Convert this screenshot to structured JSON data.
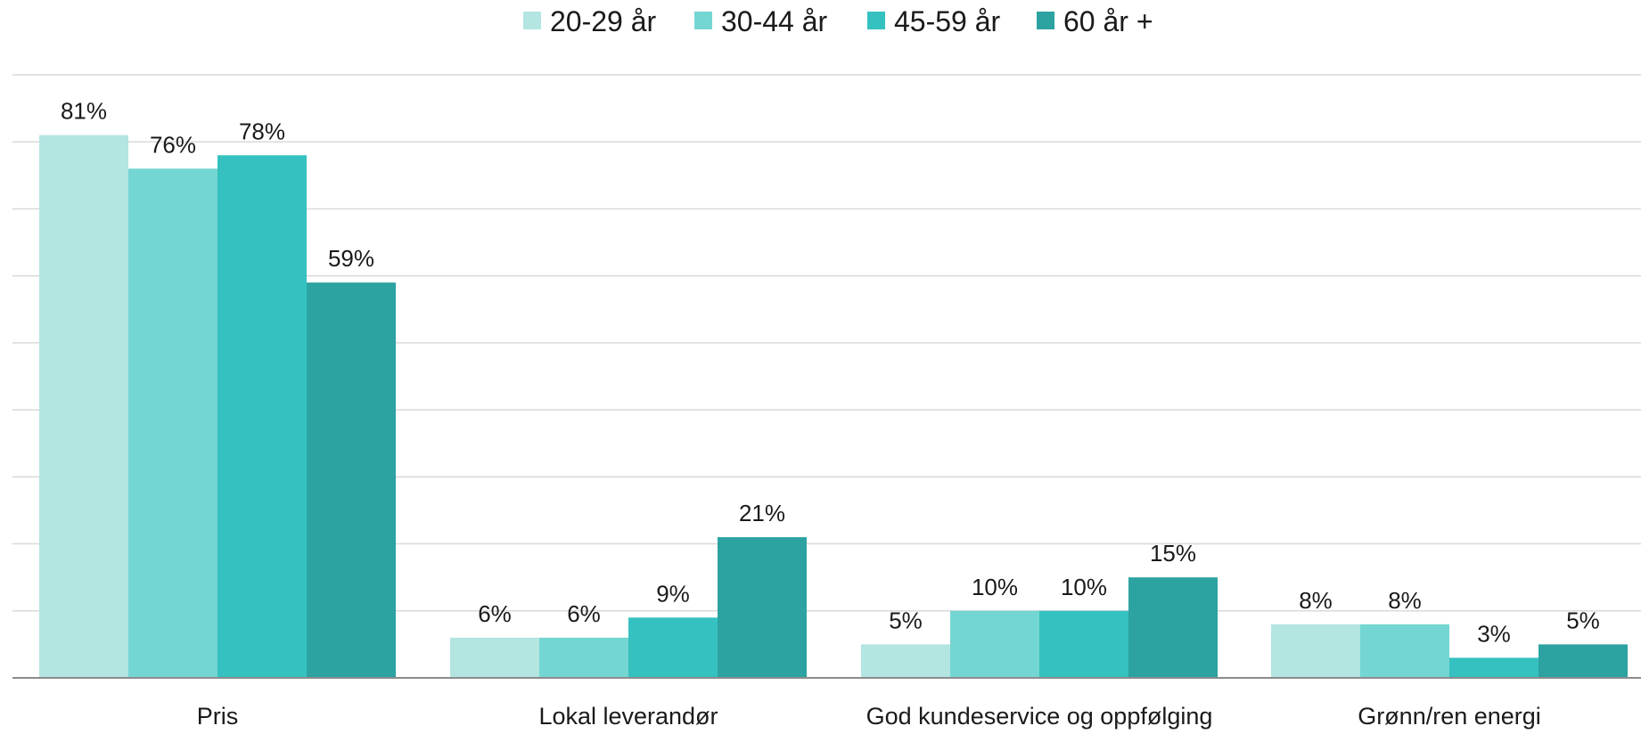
{
  "chart_data": {
    "type": "bar",
    "categories": [
      "Pris",
      "Lokal leverandør",
      "God kundeservice og oppfølging",
      "Grønn/ren energi"
    ],
    "series": [
      {
        "name": "20-29 år",
        "color": "#b3e5e1",
        "values": [
          81,
          6,
          5,
          8
        ],
        "labels": [
          "81%",
          "6%",
          "5%",
          "8%"
        ]
      },
      {
        "name": "30-44 år",
        "color": "#74d6d2",
        "values": [
          76,
          6,
          10,
          8
        ],
        "labels": [
          "76%",
          "6%",
          "10%",
          "8%"
        ]
      },
      {
        "name": "45-59 år",
        "color": "#35c1c0",
        "values": [
          78,
          9,
          10,
          3
        ],
        "labels": [
          "78%",
          "9%",
          "10%",
          "3%"
        ]
      },
      {
        "name": "60 år +",
        "color": "#2ca3a1",
        "values": [
          59,
          21,
          15,
          5
        ],
        "labels": [
          "59%",
          "21%",
          "15%",
          "5%"
        ]
      }
    ],
    "ylim": [
      0,
      90
    ],
    "y_axis_labels": false,
    "grid": true,
    "legend_position": "top-center"
  }
}
